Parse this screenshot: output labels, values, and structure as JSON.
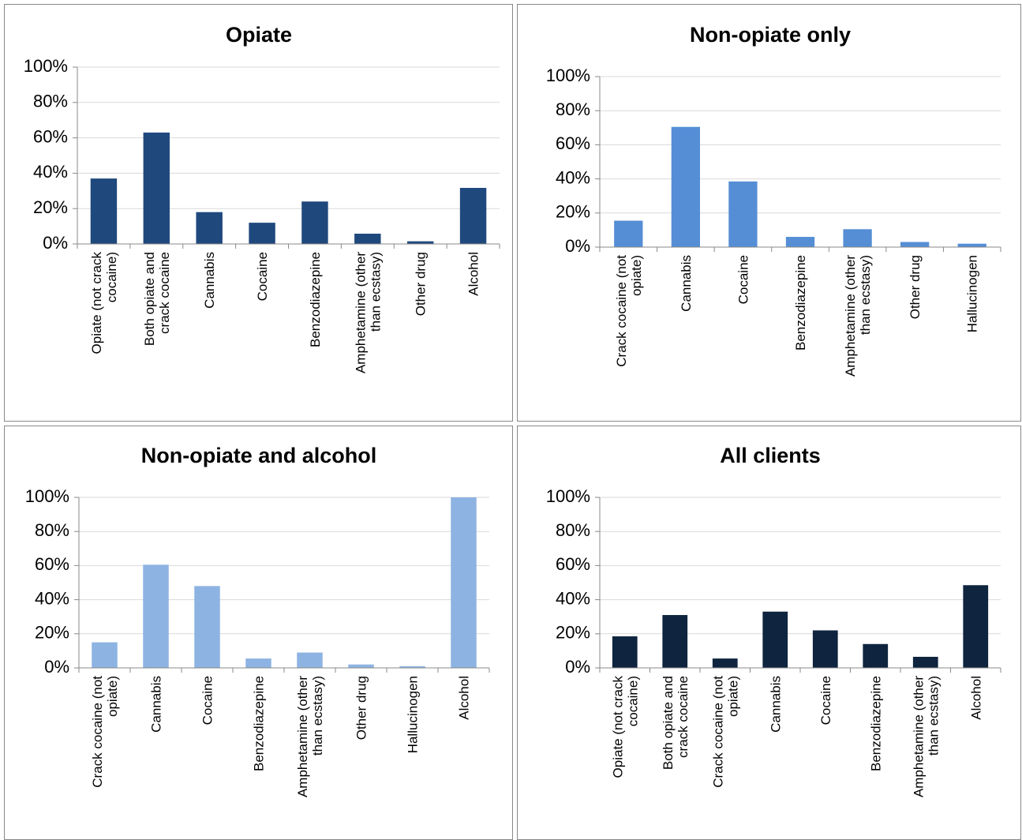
{
  "chart_data": [
    {
      "type": "bar",
      "title": "Opiate",
      "color": "#1f497d",
      "categories": [
        "Opiate (not crack cocaine)",
        "Both opiate and crack cocaine",
        "Cannabis",
        "Cocaine",
        "Benzodiazepine",
        "Amphetamine (other than ecstasy)",
        "Other drug",
        "Alcohol"
      ],
      "values": [
        37,
        63,
        18,
        12,
        24,
        5.8,
        1.5,
        31.7
      ],
      "ylim": [
        0,
        100
      ],
      "yticks": [
        {
          "value": 0,
          "label": "0%"
        },
        {
          "value": 20,
          "label": "20%"
        },
        {
          "value": 40,
          "label": "40%"
        },
        {
          "value": 60,
          "label": "60%"
        },
        {
          "value": 80,
          "label": "80%"
        },
        {
          "value": 100,
          "label": "100%"
        }
      ],
      "grid": true
    },
    {
      "type": "bar",
      "title": "Non-opiate only",
      "color": "#558ed5",
      "categories": [
        "Crack cocaine (not opiate)",
        "Cannabis",
        "Cocaine",
        "Benzodiazepine",
        "Amphetamine (other than ecstasy)",
        "Other drug",
        "Hallucinogen"
      ],
      "values": [
        15.5,
        70.5,
        38.5,
        6,
        10.5,
        3,
        2
      ],
      "ylim": [
        0,
        100
      ],
      "yticks": [
        {
          "value": 0,
          "label": "0%"
        },
        {
          "value": 20,
          "label": "20%"
        },
        {
          "value": 40,
          "label": "40%"
        },
        {
          "value": 60,
          "label": "60%"
        },
        {
          "value": 80,
          "label": "80%"
        },
        {
          "value": 100,
          "label": "100%"
        }
      ],
      "grid": true
    },
    {
      "type": "bar",
      "title": "Non-opiate and alcohol",
      "color": "#8db3e2",
      "categories": [
        "Crack cocaine (not opiate)",
        "Cannabis",
        "Cocaine",
        "Benzodiazepine",
        "Amphetamine (other than ecstasy)",
        "Other drug",
        "Hallucinogen",
        "Alcohol"
      ],
      "values": [
        15,
        60.5,
        48,
        5.5,
        9,
        2,
        1,
        100
      ],
      "ylim": [
        0,
        100
      ],
      "yticks": [
        {
          "value": 0,
          "label": "0%"
        },
        {
          "value": 20,
          "label": "20%"
        },
        {
          "value": 40,
          "label": "40%"
        },
        {
          "value": 60,
          "label": "60%"
        },
        {
          "value": 80,
          "label": "80%"
        },
        {
          "value": 100,
          "label": "100%"
        }
      ],
      "grid": true
    },
    {
      "type": "bar",
      "title": "All clients",
      "color": "#0f243e",
      "categories": [
        "Opiate (not crack cocaine)",
        "Both opiate and crack cocaine",
        "Crack cocaine (not opiate)",
        "Cannabis",
        "Cocaine",
        "Benzodiazepine",
        "Amphetamine (other than ecstasy)",
        "Alcohol"
      ],
      "values": [
        18.5,
        31,
        5.5,
        33,
        22,
        14,
        6.5,
        48.5
      ],
      "ylim": [
        0,
        100
      ],
      "yticks": [
        {
          "value": 0,
          "label": "0%"
        },
        {
          "value": 20,
          "label": "20%"
        },
        {
          "value": 40,
          "label": "40%"
        },
        {
          "value": 60,
          "label": "60%"
        },
        {
          "value": 80,
          "label": "80%"
        },
        {
          "value": 100,
          "label": "100%"
        }
      ],
      "grid": true
    }
  ]
}
